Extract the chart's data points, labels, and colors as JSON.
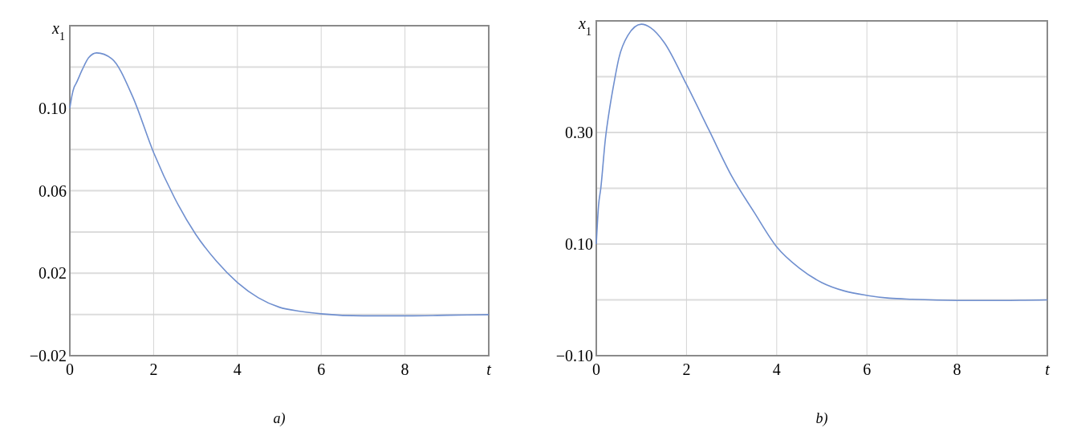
{
  "chart_data": [
    {
      "type": "line",
      "title": "a)",
      "xlabel": "t",
      "ylabel": "x$_{1}$",
      "xlim": [
        0,
        10
      ],
      "ylim": [
        -0.02,
        0.14
      ],
      "xticks": [
        0,
        2,
        4,
        6,
        8
      ],
      "yticks": [
        -0.02,
        0.02,
        0.06,
        {
          "value": 0.1,
          "label": "0.10"
        },
        {
          "value": 0.0,
          "label": null
        },
        {
          "value": 0.04,
          "label": null
        },
        {
          "value": 0.08,
          "label": null
        },
        {
          "value": 0.12,
          "label": null
        }
      ],
      "grid": true,
      "series": [
        {
          "color": "#6f8fcf",
          "x": [
            0,
            0.05,
            0.1,
            0.15,
            0.3,
            0.45,
            0.64,
            1,
            1.5,
            2,
            2.5,
            3,
            3.5,
            4,
            4.5,
            5,
            5.5,
            6,
            7,
            8,
            9,
            10
          ],
          "values": [
            0.1,
            0.106,
            0.11,
            0.112,
            0.1188,
            0.1245,
            0.1268,
            0.124,
            0.1056,
            0.0785,
            0.0565,
            0.039,
            0.0258,
            0.0155,
            0.0081,
            0.0035,
            0.0015,
            0.0003,
            -0.0007,
            -0.0007,
            -0.0004,
            -0.0001
          ]
        }
      ]
    },
    {
      "type": "line",
      "title": "b)",
      "xlabel": "t",
      "ylabel": "x$_{1}$",
      "xlim": [
        0,
        10
      ],
      "ylim": [
        -0.1,
        0.5
      ],
      "xticks": [
        0,
        2,
        4,
        6,
        8
      ],
      "yticks": [
        {
          "value": -0.1,
          "label": "−0.10"
        },
        {
          "value": 0.1,
          "label": "0.10"
        },
        {
          "value": 0.3,
          "label": "0.30"
        },
        {
          "value": 0.0,
          "label": null
        },
        {
          "value": 0.2,
          "label": null
        },
        {
          "value": 0.4,
          "label": null
        }
      ],
      "grid": true,
      "series": [
        {
          "color": "#6f8fcf",
          "x": [
            0,
            0.05,
            0.1,
            0.2,
            0.3,
            0.4,
            0.5,
            0.7,
            1,
            1.2,
            1.5,
            2,
            2.5,
            3,
            3.5,
            4,
            4.5,
            5,
            5.5,
            6,
            6.5,
            7,
            8,
            9,
            10
          ],
          "values": [
            0.1,
            0.169,
            0.2,
            0.287,
            0.345,
            0.392,
            0.433,
            0.474,
            0.494,
            0.488,
            0.462,
            0.386,
            0.304,
            0.222,
            0.157,
            0.095,
            0.057,
            0.031,
            0.016,
            0.008,
            0.003,
            0.001,
            -0.001,
            -0.001,
            0
          ]
        }
      ]
    }
  ]
}
